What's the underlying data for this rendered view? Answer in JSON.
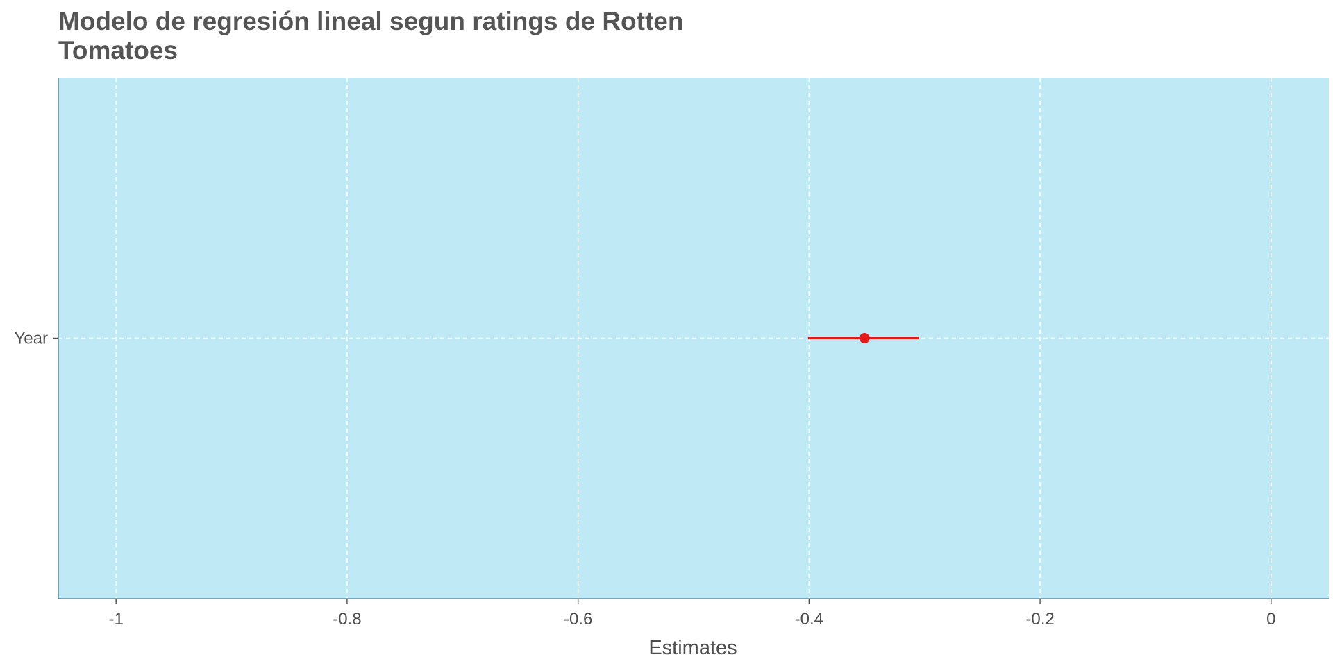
{
  "chart_data": {
    "type": "scatter",
    "title": "Modelo de regresión lineal segun ratings de Rotten Tomatoes",
    "xlabel": "Estimates",
    "ylabel": "",
    "xlim": [
      -1.05,
      0.05
    ],
    "x_ticks": [
      -1,
      -0.8,
      -0.6,
      -0.4,
      -0.2,
      0
    ],
    "x_tick_labels": [
      "-1",
      "-0.8",
      "-0.6",
      "-0.4",
      "-0.2",
      "0"
    ],
    "categories": [
      "Year"
    ],
    "points": [
      {
        "term": "Year",
        "estimate": -0.352,
        "conf_low": -0.401,
        "conf_high": -0.305
      }
    ],
    "grid": true,
    "grid_style": "dashed",
    "legend": "none",
    "colors": {
      "panel_background": "#c0e9f6",
      "grid": "#ffffff",
      "axis_line": "#5a8fa8",
      "estimate": "#e31a1c",
      "text": "#4d4d4d",
      "title": "#555555"
    }
  }
}
